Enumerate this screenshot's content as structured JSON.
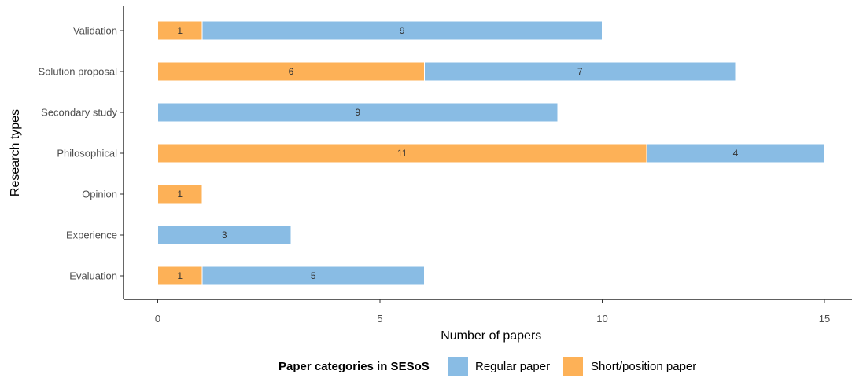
{
  "chart_data": {
    "type": "bar",
    "orientation": "horizontal",
    "stacked": true,
    "xlabel": "Number of papers",
    "ylabel": "Research types",
    "xlim": [
      0,
      15
    ],
    "xticks": [
      0,
      5,
      10,
      15
    ],
    "categories": [
      "Validation",
      "Solution proposal",
      "Secondary study",
      "Philosophical",
      "Opinion",
      "Experience",
      "Evaluation"
    ],
    "series": [
      {
        "name": "Short/position paper",
        "color": "#FDB157",
        "values": [
          1,
          6,
          0,
          11,
          1,
          0,
          1
        ]
      },
      {
        "name": "Regular paper",
        "color": "#89BCE4",
        "values": [
          9,
          7,
          9,
          4,
          0,
          3,
          5
        ]
      }
    ],
    "legend": {
      "title": "Paper categories in SESoS",
      "position": "bottom",
      "entries": [
        {
          "label": "Regular paper",
          "color": "#89BCE4"
        },
        {
          "label": "Short/position paper",
          "color": "#FDB157"
        }
      ]
    },
    "grid": false
  }
}
